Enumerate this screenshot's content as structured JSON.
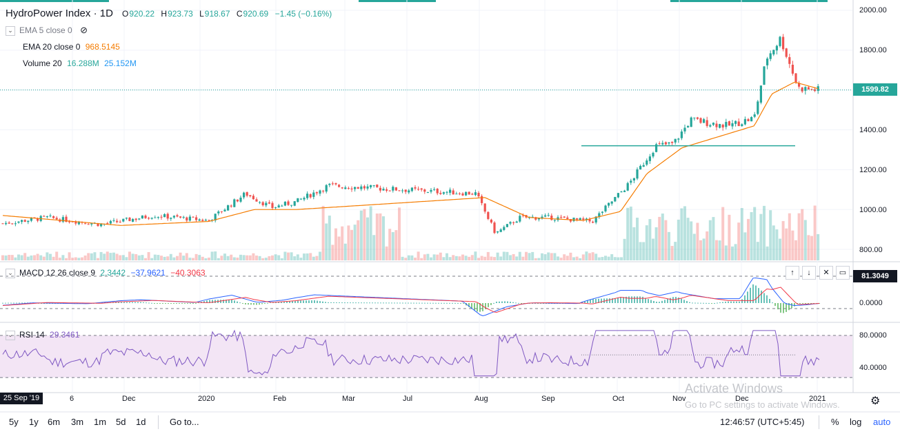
{
  "header": {
    "symbol": "HydroPower Index",
    "interval": "1D",
    "open_label": "O",
    "open": "920.22",
    "high_label": "H",
    "high": "923.73",
    "low_label": "L",
    "low": "918.67",
    "close_label": "C",
    "close": "920.69",
    "change": "−1.45 (−0.16%)"
  },
  "indicators": {
    "ema5": {
      "label": "EMA 5 close 0"
    },
    "ema20": {
      "label": "EMA 20 close 0",
      "value": "968.5145"
    },
    "volume": {
      "label": "Volume 20",
      "value1": "16.288M",
      "value2": "25.152M"
    },
    "macd": {
      "label": "MACD 12 26 close 9",
      "v1": "2.3442",
      "v2": "−37.9621",
      "v3": "−40.3063"
    },
    "rsi": {
      "label": "RSI 14",
      "value": "29.3461"
    }
  },
  "price_axis": {
    "labels": [
      "2000.00",
      "1800.00",
      "1600.00",
      "1400.00",
      "1200.00",
      "1000.00",
      "800.00"
    ],
    "last_price": "1599.82"
  },
  "macd_axis": {
    "labels": [
      "0.0000"
    ],
    "tag": "81.3049"
  },
  "rsi_axis": {
    "labels": [
      "80.0000",
      "40.0000"
    ]
  },
  "time_axis": {
    "cursor_date": "25 Sep '19",
    "labels": [
      "6",
      "Dec",
      "2020",
      "Feb",
      "Mar",
      "Jul",
      "Aug",
      "Sep",
      "Oct",
      "Nov",
      "Dec",
      "2021"
    ]
  },
  "toolbar": {
    "ranges": [
      "5y",
      "1y",
      "6m",
      "3m",
      "1m",
      "5d",
      "1d"
    ],
    "goto": "Go to...",
    "clock": "12:46:57 (UTC+5:45)",
    "percent": "%",
    "log": "log",
    "auto": "auto"
  },
  "watermark": {
    "line1": "Activate Windows",
    "line2": "Go to PC settings to activate Windows."
  },
  "colors": {
    "up": "#26a69a",
    "down": "#ef5350",
    "ema20": "#f57c00",
    "macd": "#2962ff",
    "signal": "#f23645",
    "rsi": "#7e57c2",
    "rsi_band": "#f3e5f5",
    "accent_link": "#2962ff"
  },
  "chart_data": {
    "type": "candlestick",
    "title": "HydroPower Index",
    "interval": "1D",
    "ylim": [
      740,
      2020
    ],
    "y_ticks": [
      800,
      1000,
      1200,
      1400,
      1600,
      1800,
      2000
    ],
    "x_range": [
      "2019-09-25",
      "2021-01-01"
    ],
    "ohlc_last": {
      "open": 920.22,
      "high": 923.73,
      "low": 918.67,
      "close": 920.69
    },
    "close_series": {
      "x": [
        "2019-09-25",
        "2019-10-20",
        "2019-11-20",
        "2019-12-20",
        "2020-01-20",
        "2020-02-10",
        "2020-02-25",
        "2020-03-10",
        "2020-03-28",
        "2020-06-20",
        "2020-07-01",
        "2020-07-15",
        "2020-08-01",
        "2020-08-25",
        "2020-09-15",
        "2020-09-30",
        "2020-10-10",
        "2020-10-20",
        "2020-11-10",
        "2020-11-25",
        "2020-12-02",
        "2020-12-10",
        "2020-12-20",
        "2021-01-01"
      ],
      "y": [
        930,
        960,
        925,
        970,
        945,
        1080,
        1010,
        1040,
        1120,
        1080,
        880,
        960,
        960,
        940,
        1130,
        1320,
        1330,
        1450,
        1420,
        1460,
        1760,
        1860,
        1610,
        1600
      ]
    },
    "ema20_series": {
      "x": [
        "2019-09-25",
        "2019-12-01",
        "2020-01-20",
        "2020-02-15",
        "2020-03-10",
        "2020-06-25",
        "2020-07-20",
        "2020-08-20",
        "2020-09-10",
        "2020-09-25",
        "2020-10-15",
        "2020-11-25",
        "2020-12-05",
        "2020-12-18",
        "2021-01-01"
      ],
      "y": [
        970,
        920,
        940,
        1000,
        1000,
        1060,
        960,
        945,
        990,
        1180,
        1310,
        1420,
        1580,
        1640,
        1605
      ]
    },
    "volume_M": {
      "last": 16.288,
      "ma20": 25.152
    },
    "macd": {
      "macd": 2.3442,
      "signal": -37.9621,
      "hist": -40.3063
    },
    "rsi": {
      "period": 14,
      "value": 29.3461,
      "bands": [
        80,
        40
      ]
    },
    "horizontal_level": 1320
  }
}
